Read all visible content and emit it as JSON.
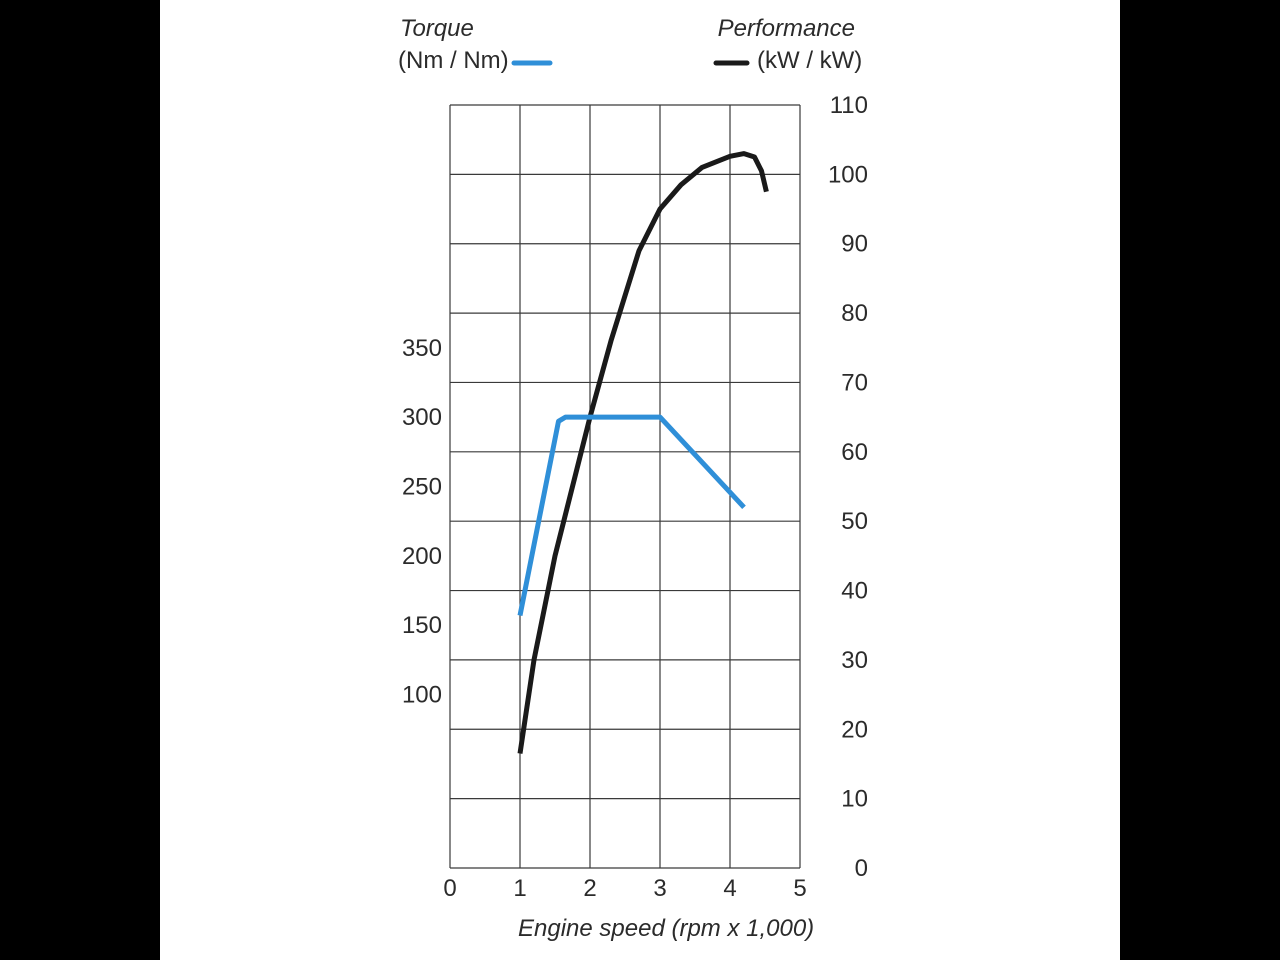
{
  "chart_data": {
    "type": "line",
    "title": "",
    "xlabel": "Engine speed (rpm x 1,000)",
    "xlim": [
      0,
      5
    ],
    "x_ticks": [
      "0",
      "1",
      "2",
      "3",
      "4",
      "5"
    ],
    "grid": true,
    "legend_position": "top",
    "y_left": {
      "axis_title": "Torque",
      "unit_label": "(Nm / Nm)",
      "range": [
        -25,
        525
      ],
      "tick_values": [
        100,
        150,
        200,
        250,
        300,
        350
      ],
      "tick_labels": [
        "100",
        "150",
        "200",
        "250",
        "300",
        "350"
      ]
    },
    "y_right": {
      "axis_title": "Performance",
      "unit_label": "(kW / kW)",
      "range": [
        0,
        110
      ],
      "tick_values": [
        0,
        10,
        20,
        30,
        40,
        50,
        60,
        70,
        80,
        90,
        100,
        110
      ],
      "tick_labels": [
        "0",
        "10",
        "20",
        "30",
        "40",
        "50",
        "60",
        "70",
        "80",
        "90",
        "100",
        "110"
      ]
    },
    "series": [
      {
        "name": "Torque",
        "axis": "left",
        "color": "#2f8fd8",
        "points": [
          [
            1.0,
            157
          ],
          [
            1.55,
            297
          ],
          [
            1.65,
            300
          ],
          [
            3.0,
            300
          ],
          [
            4.2,
            235
          ]
        ]
      },
      {
        "name": "Performance",
        "axis": "right",
        "color": "#1a1a1a",
        "points": [
          [
            1.0,
            16.5
          ],
          [
            1.2,
            30
          ],
          [
            1.5,
            45
          ],
          [
            1.8,
            57
          ],
          [
            2.0,
            65
          ],
          [
            2.3,
            76
          ],
          [
            2.7,
            89
          ],
          [
            3.0,
            95
          ],
          [
            3.3,
            98.5
          ],
          [
            3.6,
            101
          ],
          [
            4.0,
            102.6
          ],
          [
            4.2,
            103
          ],
          [
            4.35,
            102.5
          ],
          [
            4.45,
            100.5
          ],
          [
            4.52,
            97.5
          ]
        ]
      }
    ]
  }
}
